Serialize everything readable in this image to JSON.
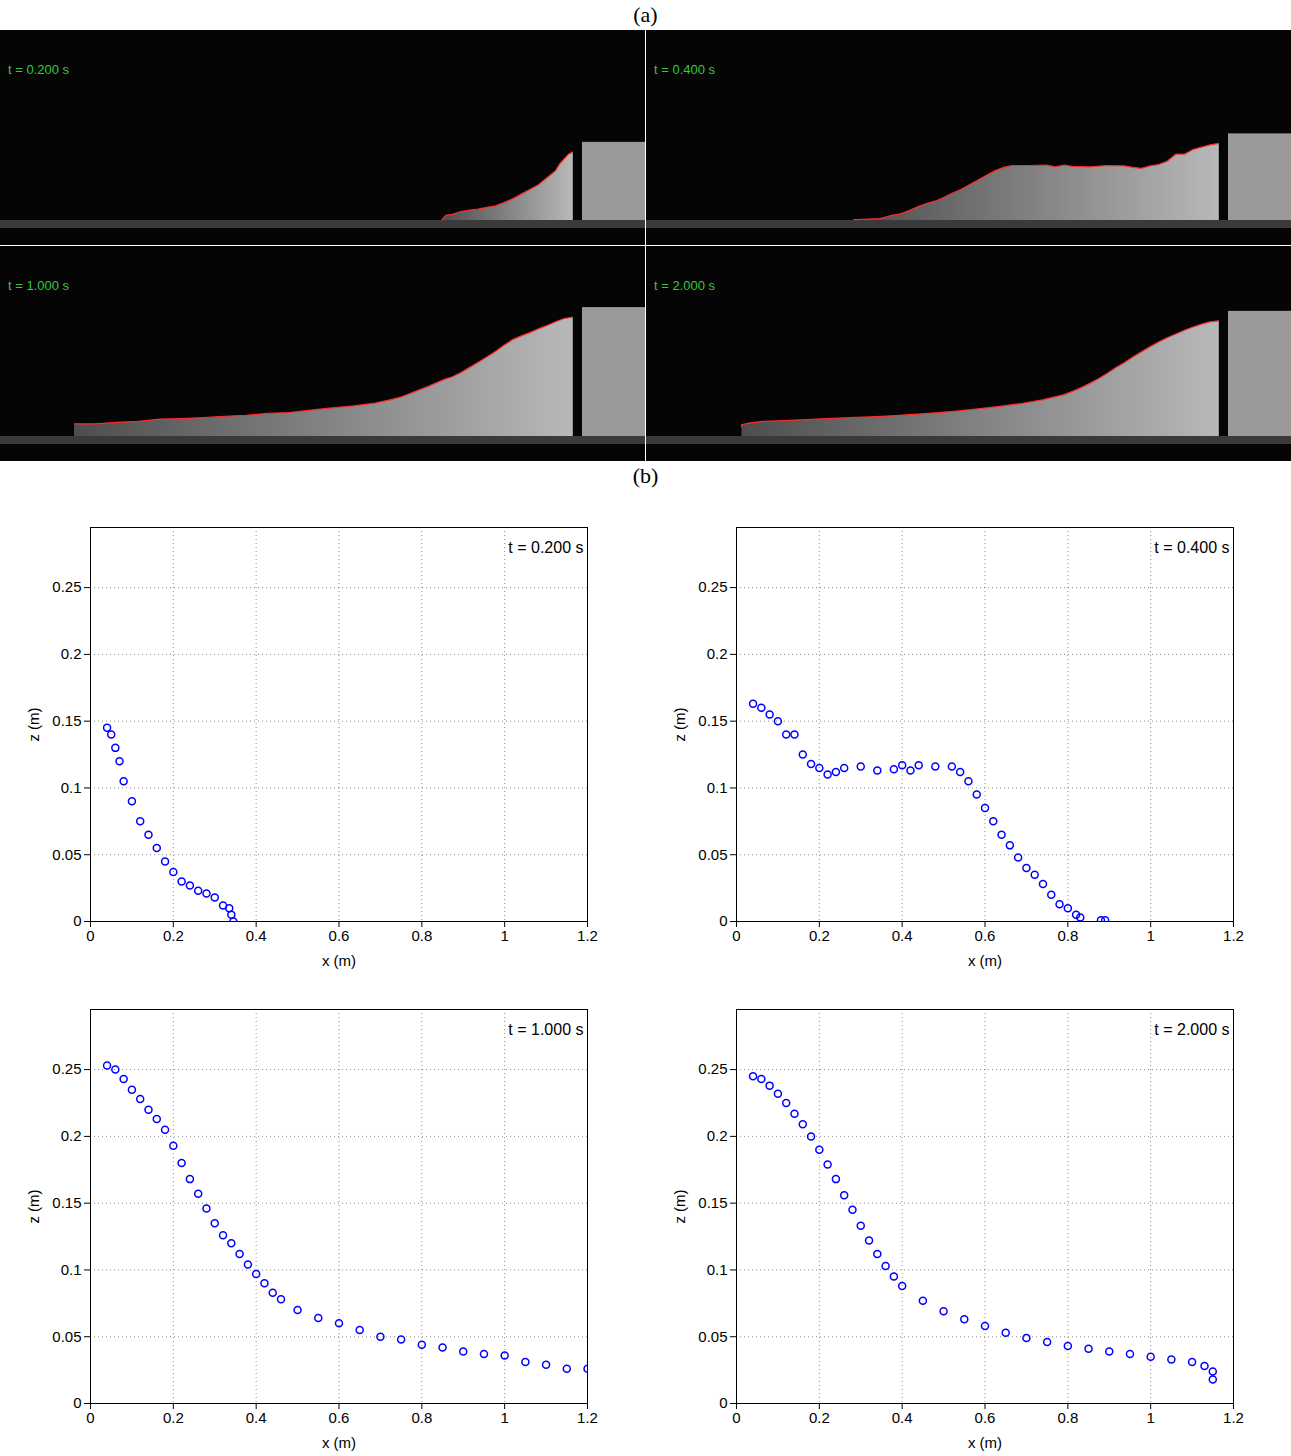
{
  "figure_labels": [
    "(a)",
    "(b)"
  ],
  "chart_data": [
    {
      "type": "scatter",
      "annotation": "t = 0.200 s",
      "x_label": "x (m)",
      "y_label": "z (m)",
      "x": [
        0.04,
        0.05,
        0.06,
        0.07,
        0.08,
        0.1,
        0.12,
        0.14,
        0.16,
        0.18,
        0.2,
        0.22,
        0.24,
        0.26,
        0.28,
        0.3,
        0.32,
        0.335,
        0.34,
        0.345
      ],
      "values": [
        0.145,
        0.14,
        0.13,
        0.12,
        0.105,
        0.09,
        0.075,
        0.065,
        0.055,
        0.045,
        0.037,
        0.03,
        0.027,
        0.023,
        0.021,
        0.018,
        0.012,
        0.01,
        0.005,
        0.0
      ],
      "color": "#0000ff",
      "marker": "circle",
      "xlim": [
        0,
        1.2
      ],
      "ylim": [
        0,
        0.295
      ],
      "xticks": [
        0,
        0.2,
        0.4,
        0.6,
        0.8,
        1,
        1.2
      ],
      "yticks": [
        0,
        0.05,
        0.1,
        0.15,
        0.2,
        0.25
      ],
      "grid": true
    },
    {
      "type": "scatter",
      "annotation": "t = 0.400 s",
      "x_label": "x (m)",
      "y_label": "z (m)",
      "x": [
        0.04,
        0.06,
        0.08,
        0.1,
        0.12,
        0.14,
        0.16,
        0.18,
        0.2,
        0.22,
        0.24,
        0.26,
        0.3,
        0.34,
        0.38,
        0.4,
        0.42,
        0.44,
        0.48,
        0.52,
        0.54,
        0.56,
        0.58,
        0.6,
        0.62,
        0.64,
        0.66,
        0.68,
        0.7,
        0.72,
        0.74,
        0.76,
        0.78,
        0.8,
        0.82,
        0.83,
        0.88,
        0.89
      ],
      "values": [
        0.163,
        0.16,
        0.155,
        0.15,
        0.14,
        0.14,
        0.125,
        0.118,
        0.115,
        0.11,
        0.112,
        0.115,
        0.116,
        0.113,
        0.114,
        0.117,
        0.113,
        0.117,
        0.116,
        0.116,
        0.112,
        0.105,
        0.095,
        0.085,
        0.075,
        0.065,
        0.057,
        0.048,
        0.04,
        0.035,
        0.028,
        0.02,
        0.013,
        0.01,
        0.005,
        0.003,
        0.001,
        0.001
      ],
      "color": "#0000ff",
      "marker": "circle",
      "xlim": [
        0,
        1.2
      ],
      "ylim": [
        0,
        0.295
      ],
      "xticks": [
        0,
        0.2,
        0.4,
        0.6,
        0.8,
        1,
        1.2
      ],
      "yticks": [
        0,
        0.05,
        0.1,
        0.15,
        0.2,
        0.25
      ],
      "grid": true
    },
    {
      "type": "scatter",
      "annotation": "t = 1.000 s",
      "x_label": "x (m)",
      "y_label": "z (m)",
      "x": [
        0.04,
        0.06,
        0.08,
        0.1,
        0.12,
        0.14,
        0.16,
        0.18,
        0.2,
        0.22,
        0.24,
        0.26,
        0.28,
        0.3,
        0.32,
        0.34,
        0.36,
        0.38,
        0.4,
        0.42,
        0.44,
        0.46,
        0.5,
        0.55,
        0.6,
        0.65,
        0.7,
        0.75,
        0.8,
        0.85,
        0.9,
        0.95,
        1.0,
        1.05,
        1.1,
        1.15,
        1.2
      ],
      "values": [
        0.253,
        0.25,
        0.243,
        0.235,
        0.228,
        0.22,
        0.213,
        0.205,
        0.193,
        0.18,
        0.168,
        0.157,
        0.146,
        0.135,
        0.126,
        0.12,
        0.112,
        0.104,
        0.097,
        0.09,
        0.083,
        0.078,
        0.07,
        0.064,
        0.06,
        0.055,
        0.05,
        0.048,
        0.044,
        0.042,
        0.039,
        0.037,
        0.036,
        0.031,
        0.029,
        0.026,
        0.026
      ],
      "color": "#0000ff",
      "marker": "circle",
      "xlim": [
        0,
        1.2
      ],
      "ylim": [
        0,
        0.295
      ],
      "xticks": [
        0,
        0.2,
        0.4,
        0.6,
        0.8,
        1,
        1.2
      ],
      "yticks": [
        0,
        0.05,
        0.1,
        0.15,
        0.2,
        0.25
      ],
      "grid": true
    },
    {
      "type": "scatter",
      "annotation": "t = 2.000 s",
      "x_label": "x (m)",
      "y_label": "z (m)",
      "x": [
        0.04,
        0.06,
        0.08,
        0.1,
        0.12,
        0.14,
        0.16,
        0.18,
        0.2,
        0.22,
        0.24,
        0.26,
        0.28,
        0.3,
        0.32,
        0.34,
        0.36,
        0.38,
        0.4,
        0.45,
        0.5,
        0.55,
        0.6,
        0.65,
        0.7,
        0.75,
        0.8,
        0.85,
        0.9,
        0.95,
        1.0,
        1.05,
        1.1,
        1.13,
        1.15,
        1.15
      ],
      "values": [
        0.245,
        0.243,
        0.238,
        0.232,
        0.225,
        0.217,
        0.209,
        0.2,
        0.19,
        0.179,
        0.168,
        0.156,
        0.145,
        0.133,
        0.122,
        0.112,
        0.103,
        0.095,
        0.088,
        0.077,
        0.069,
        0.063,
        0.058,
        0.053,
        0.049,
        0.046,
        0.043,
        0.041,
        0.039,
        0.037,
        0.035,
        0.033,
        0.031,
        0.028,
        0.024,
        0.018
      ],
      "color": "#0000ff",
      "marker": "circle",
      "xlim": [
        0,
        1.2
      ],
      "ylim": [
        0,
        0.295
      ],
      "xticks": [
        0,
        0.2,
        0.4,
        0.6,
        0.8,
        1,
        1.2
      ],
      "yticks": [
        0,
        0.05,
        0.1,
        0.15,
        0.2,
        0.25
      ],
      "grid": true
    }
  ]
}
